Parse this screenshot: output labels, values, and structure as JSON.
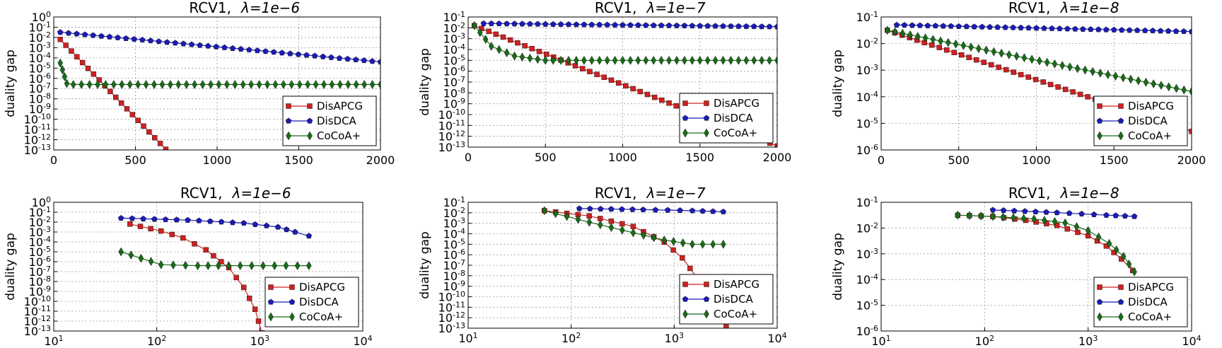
{
  "figure": {
    "series_styles": [
      {
        "name": "DisAPCG",
        "color": "#cc2222",
        "marker": "square"
      },
      {
        "name": "DisDCA",
        "color": "#1c1cb4",
        "marker": "pentagon"
      },
      {
        "name": "CoCoA+",
        "color": "#1a6b1a",
        "marker": "diamond"
      }
    ]
  },
  "chart_data": [
    {
      "type": "line",
      "title": "RCV1,",
      "lambda_label": "λ=1e−6",
      "xlabel": "",
      "ylabel": "duality gap",
      "xscale": "linear",
      "xlim": [
        0,
        2000
      ],
      "xticks": [
        0,
        500,
        1000,
        1500,
        2000
      ],
      "yscale": "log",
      "ylim_exp": [
        -13,
        0
      ],
      "ytick_exps": [
        -13,
        -12,
        -11,
        -10,
        -9,
        -8,
        -7,
        -6,
        -5,
        -4,
        -3,
        -2,
        -1,
        0
      ],
      "grid": true,
      "legend": "lower-right",
      "series": [
        {
          "name": "DisAPCG",
          "x": [
            40,
            720
          ],
          "y_exp": [
            -2.2,
            -13.5
          ]
        },
        {
          "name": "DisDCA",
          "x": [
            40,
            2000
          ],
          "y_exp": [
            -1.5,
            -4.4
          ]
        },
        {
          "name": "CoCoA+",
          "x": [
            40,
            80,
            120,
            2000
          ],
          "y_exp": [
            -4.5,
            -6.5,
            -6.6,
            -6.6
          ]
        }
      ]
    },
    {
      "type": "line",
      "title": "RCV1,",
      "lambda_label": "λ=1e−7",
      "xlabel": "",
      "ylabel": "duality gap",
      "xscale": "linear",
      "xlim": [
        0,
        2000
      ],
      "xticks": [
        0,
        500,
        1000,
        1500,
        2000
      ],
      "yscale": "log",
      "ylim_exp": [
        -13,
        -1
      ],
      "ytick_exps": [
        -13,
        -12,
        -11,
        -10,
        -9,
        -8,
        -7,
        -6,
        -5,
        -4,
        -3,
        -2,
        -1
      ],
      "grid": true,
      "legend": "lower-right",
      "series": [
        {
          "name": "DisAPCG",
          "x": [
            40,
            2000
          ],
          "y_exp": [
            -1.8,
            -12.9
          ]
        },
        {
          "name": "DisDCA",
          "x": [
            100,
            2000
          ],
          "y_exp": [
            -1.6,
            -1.9
          ]
        },
        {
          "name": "CoCoA+",
          "x": [
            40,
            150,
            300,
            500,
            700,
            2000
          ],
          "y_exp": [
            -1.8,
            -3.7,
            -4.6,
            -5.0,
            -5.0,
            -5.0
          ]
        }
      ]
    },
    {
      "type": "line",
      "title": "RCV1,",
      "lambda_label": "λ=1e−8",
      "xlabel": "",
      "ylabel": "duality gap",
      "xscale": "linear",
      "xlim": [
        0,
        2000
      ],
      "xticks": [
        0,
        500,
        1000,
        1500,
        2000
      ],
      "yscale": "log",
      "ylim_exp": [
        -6,
        -1
      ],
      "ytick_exps": [
        -6,
        -5,
        -4,
        -3,
        -2,
        -1
      ],
      "grid": true,
      "legend": "lower-right",
      "series": [
        {
          "name": "DisAPCG",
          "x": [
            40,
            2000
          ],
          "y_exp": [
            -1.5,
            -5.3
          ]
        },
        {
          "name": "DisDCA",
          "x": [
            100,
            2000
          ],
          "y_exp": [
            -1.3,
            -1.55
          ]
        },
        {
          "name": "CoCoA+",
          "x": [
            40,
            2000
          ],
          "y_exp": [
            -1.5,
            -3.8
          ]
        }
      ]
    },
    {
      "type": "line",
      "title": "RCV1,",
      "lambda_label": "λ=1e−6",
      "xlabel": "",
      "ylabel": "duality gap",
      "xscale": "log",
      "xlim_exp": [
        1,
        4
      ],
      "xtick_exps": [
        1,
        2,
        3,
        4
      ],
      "yscale": "log",
      "ylim_exp": [
        -13,
        0
      ],
      "ytick_exps": [
        -13,
        -12,
        -11,
        -10,
        -9,
        -8,
        -7,
        -6,
        -5,
        -4,
        -3,
        -2,
        -1,
        0
      ],
      "grid": true,
      "legend": "lower-right",
      "series": [
        {
          "name": "DisAPCG",
          "x": [
            55,
            110,
            180,
            300,
            500,
            700,
            900,
            1050
          ],
          "y_exp": [
            -2.2,
            -2.9,
            -3.6,
            -4.8,
            -6.6,
            -8.6,
            -10.8,
            -13.2
          ]
        },
        {
          "name": "DisDCA",
          "x": [
            45,
            200,
            700,
            1500,
            2200,
            3000
          ],
          "y_exp": [
            -1.6,
            -1.8,
            -2.1,
            -2.5,
            -3.0,
            -3.4
          ]
        },
        {
          "name": "CoCoA+",
          "x": [
            45,
            110,
            250,
            500,
            3000
          ],
          "y_exp": [
            -5.0,
            -6.3,
            -6.4,
            -6.4,
            -6.4
          ]
        }
      ]
    },
    {
      "type": "line",
      "title": "RCV1,",
      "lambda_label": "λ=1e−7",
      "xlabel": "",
      "ylabel": "duality gap",
      "xscale": "log",
      "xlim_exp": [
        1,
        4
      ],
      "xtick_exps": [
        1,
        2,
        3,
        4
      ],
      "yscale": "log",
      "ylim_exp": [
        -13,
        -1
      ],
      "ytick_exps": [
        -13,
        -12,
        -11,
        -10,
        -9,
        -8,
        -7,
        -6,
        -5,
        -4,
        -3,
        -2,
        -1
      ],
      "grid": true,
      "legend": "lower-right",
      "series": [
        {
          "name": "DisAPCG",
          "x": [
            55,
            150,
            400,
            800,
            1200,
            1700,
            2300,
            3200
          ],
          "y_exp": [
            -1.8,
            -2.3,
            -3.3,
            -4.8,
            -6.3,
            -8.3,
            -10.5,
            -12.9
          ]
        },
        {
          "name": "DisDCA",
          "x": [
            120,
            500,
            1500,
            3000
          ],
          "y_exp": [
            -1.6,
            -1.7,
            -1.8,
            -1.9
          ]
        },
        {
          "name": "CoCoA+",
          "x": [
            55,
            150,
            400,
            800,
            1500,
            3000
          ],
          "y_exp": [
            -1.8,
            -2.9,
            -3.9,
            -4.6,
            -5.0,
            -5.0
          ]
        }
      ]
    },
    {
      "type": "line",
      "title": "RCV1,",
      "lambda_label": "λ=1e−8",
      "xlabel": "",
      "ylabel": "duality gap",
      "xscale": "log",
      "xlim_exp": [
        1,
        4
      ],
      "xtick_exps": [
        1,
        2,
        3,
        4
      ],
      "yscale": "log",
      "ylim_exp": [
        -6,
        -1
      ],
      "ytick_exps": [
        -6,
        -5,
        -4,
        -3,
        -2,
        -1
      ],
      "grid": true,
      "legend": "lower-right",
      "series": [
        {
          "name": "DisAPCG",
          "x": [
            55,
            120,
            250,
            500,
            1000,
            1500,
            2100,
            2700
          ],
          "y_exp": [
            -1.5,
            -1.55,
            -1.7,
            -1.9,
            -2.3,
            -2.7,
            -3.2,
            -3.65
          ]
        },
        {
          "name": "DisDCA",
          "x": [
            120,
            500,
            1500,
            2800
          ],
          "y_exp": [
            -1.3,
            -1.4,
            -1.5,
            -1.55
          ]
        },
        {
          "name": "CoCoA+",
          "x": [
            55,
            120,
            300,
            600,
            1000,
            1600,
            2200,
            2800
          ],
          "y_exp": [
            -1.5,
            -1.55,
            -1.65,
            -1.8,
            -2.1,
            -2.6,
            -3.1,
            -3.7
          ]
        }
      ]
    }
  ]
}
